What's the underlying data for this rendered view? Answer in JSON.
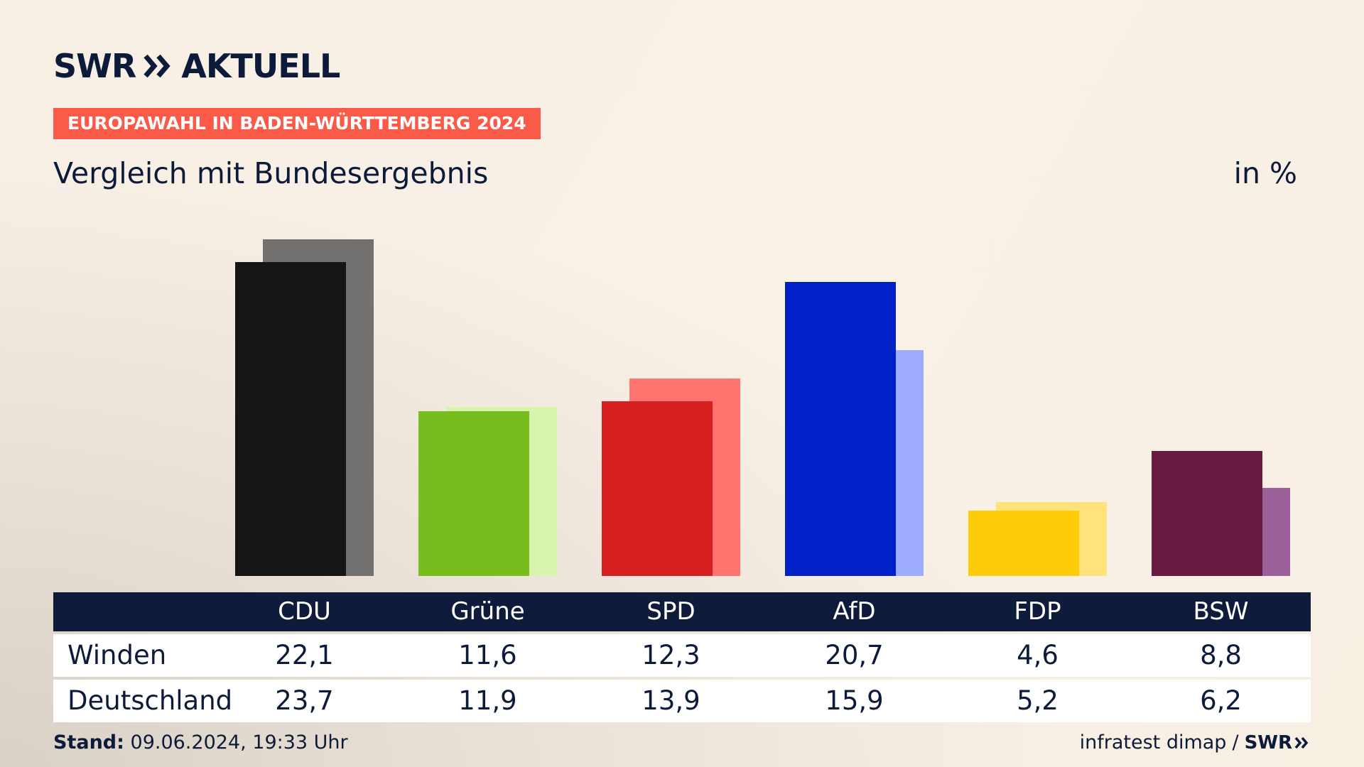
{
  "header": {
    "logo_text": "SWR",
    "logo_suffix": "AKTUELL",
    "tag": "EUROPAWAHL IN BADEN-WÜRTTEMBERG 2024",
    "subtitle": "Vergleich mit Bundesergebnis",
    "unit": "in %"
  },
  "colors": {
    "primary": [
      "#151515",
      "#78bd1e",
      "#d61f1f",
      "#0021c8",
      "#ffcc0a",
      "#6a1a40"
    ],
    "secondary": [
      "#737070",
      "#d7f5ad",
      "#ff746e",
      "#9eacff",
      "#ffe27a",
      "#9b6099"
    ],
    "header_bg": "#0e1b3b",
    "tag_bg": "#fa5a48"
  },
  "chart_data": {
    "type": "bar",
    "categories": [
      "CDU",
      "Grüne",
      "SPD",
      "AfD",
      "FDP",
      "BSW"
    ],
    "series": [
      {
        "name": "Winden",
        "values": [
          22.1,
          11.6,
          12.3,
          20.7,
          4.6,
          8.8
        ]
      },
      {
        "name": "Deutschland",
        "values": [
          23.7,
          11.9,
          13.9,
          15.9,
          5.2,
          6.2
        ]
      }
    ],
    "title": "Vergleich mit Bundesergebnis",
    "ylabel": "in %",
    "ylim": [
      0,
      24
    ],
    "grid": false
  },
  "table": {
    "rows": [
      {
        "label": "Winden",
        "values": [
          "22,1",
          "11,6",
          "12,3",
          "20,7",
          "4,6",
          "8,8"
        ]
      },
      {
        "label": "Deutschland",
        "values": [
          "23,7",
          "11,9",
          "13,9",
          "15,9",
          "5,2",
          "6,2"
        ]
      }
    ]
  },
  "footer": {
    "stand_label": "Stand:",
    "stand_value": "09.06.2024, 19:33 Uhr",
    "source": "infratest dimap",
    "separator": "/",
    "source_logo": "SWR"
  }
}
